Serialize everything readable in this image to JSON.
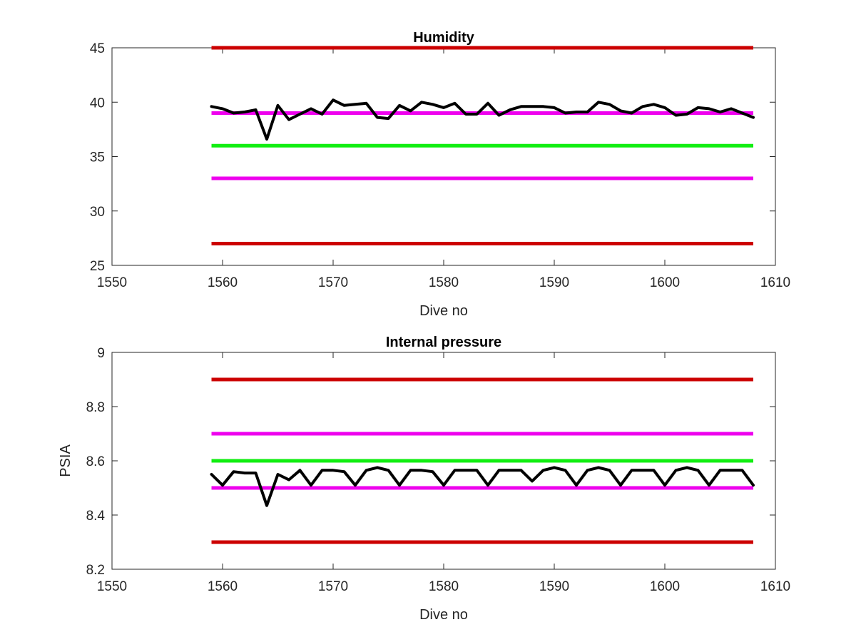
{
  "colors": {
    "red": "#cc0000",
    "magenta": "#ee00ee",
    "green": "#11ee11",
    "black": "#000000",
    "axis": "#262626"
  },
  "chart_data": [
    {
      "type": "line",
      "title": "Humidity",
      "xlabel": "Dive no",
      "ylabel": "",
      "xlim": [
        1550,
        1610
      ],
      "ylim": [
        25,
        45
      ],
      "xticks": [
        1550,
        1560,
        1570,
        1580,
        1590,
        1600,
        1610
      ],
      "yticks": [
        25,
        30,
        35,
        40,
        45
      ],
      "ytick_labels": [
        "25",
        "30",
        "35",
        "40",
        "45"
      ],
      "grid": false,
      "reference_lines": [
        {
          "y": 45,
          "x": [
            1559,
            1608
          ],
          "color": "red"
        },
        {
          "y": 39,
          "x": [
            1559,
            1608
          ],
          "color": "magenta"
        },
        {
          "y": 36,
          "x": [
            1559,
            1608
          ],
          "color": "green"
        },
        {
          "y": 33,
          "x": [
            1559,
            1608
          ],
          "color": "magenta"
        },
        {
          "y": 27,
          "x": [
            1559,
            1608
          ],
          "color": "red"
        }
      ],
      "series": [
        {
          "color": "black",
          "x": [
            1559,
            1560,
            1561,
            1562,
            1563,
            1564,
            1565,
            1566,
            1567,
            1568,
            1569,
            1570,
            1571,
            1572,
            1573,
            1574,
            1575,
            1576,
            1577,
            1578,
            1579,
            1580,
            1581,
            1582,
            1583,
            1584,
            1585,
            1586,
            1587,
            1588,
            1589,
            1590,
            1591,
            1592,
            1593,
            1594,
            1595,
            1596,
            1597,
            1598,
            1599,
            1600,
            1601,
            1602,
            1603,
            1604,
            1605,
            1606,
            1607,
            1608
          ],
          "y": [
            39.6,
            39.4,
            39.0,
            39.1,
            39.3,
            36.6,
            39.7,
            38.4,
            38.9,
            39.4,
            38.9,
            40.2,
            39.7,
            39.8,
            39.9,
            38.6,
            38.5,
            39.7,
            39.2,
            40.0,
            39.8,
            39.5,
            39.9,
            38.9,
            38.9,
            39.9,
            38.8,
            39.3,
            39.6,
            39.6,
            39.6,
            39.5,
            39.0,
            39.1,
            39.1,
            40.0,
            39.8,
            39.2,
            39.0,
            39.6,
            39.8,
            39.5,
            38.8,
            38.9,
            39.5,
            39.4,
            39.1,
            39.4,
            39.0,
            38.6
          ]
        }
      ]
    },
    {
      "type": "line",
      "title": "Internal pressure",
      "xlabel": "Dive no",
      "ylabel": "PSIA",
      "xlim": [
        1550,
        1610
      ],
      "ylim": [
        8.2,
        9.0
      ],
      "xticks": [
        1550,
        1560,
        1570,
        1580,
        1590,
        1600,
        1610
      ],
      "yticks": [
        8.2,
        8.4,
        8.6,
        8.8,
        9.0
      ],
      "ytick_labels": [
        "8.2",
        "8.4",
        "8.6",
        "8.8",
        "9"
      ],
      "grid": false,
      "reference_lines": [
        {
          "y": 8.9,
          "x": [
            1559,
            1608
          ],
          "color": "red"
        },
        {
          "y": 8.7,
          "x": [
            1559,
            1608
          ],
          "color": "magenta"
        },
        {
          "y": 8.6,
          "x": [
            1559,
            1608
          ],
          "color": "green"
        },
        {
          "y": 8.5,
          "x": [
            1559,
            1608
          ],
          "color": "magenta"
        },
        {
          "y": 8.3,
          "x": [
            1559,
            1608
          ],
          "color": "red"
        }
      ],
      "series": [
        {
          "color": "black",
          "x": [
            1559,
            1560,
            1561,
            1562,
            1563,
            1564,
            1565,
            1566,
            1567,
            1568,
            1569,
            1570,
            1571,
            1572,
            1573,
            1574,
            1575,
            1576,
            1577,
            1578,
            1579,
            1580,
            1581,
            1582,
            1583,
            1584,
            1585,
            1586,
            1587,
            1588,
            1589,
            1590,
            1591,
            1592,
            1593,
            1594,
            1595,
            1596,
            1597,
            1598,
            1599,
            1600,
            1601,
            1602,
            1603,
            1604,
            1605,
            1606,
            1607,
            1608
          ],
          "y": [
            8.55,
            8.51,
            8.56,
            8.555,
            8.555,
            8.435,
            8.55,
            8.53,
            8.565,
            8.51,
            8.565,
            8.565,
            8.56,
            8.51,
            8.565,
            8.575,
            8.565,
            8.51,
            8.565,
            8.565,
            8.56,
            8.51,
            8.565,
            8.565,
            8.565,
            8.51,
            8.565,
            8.565,
            8.565,
            8.525,
            8.565,
            8.575,
            8.565,
            8.51,
            8.565,
            8.575,
            8.565,
            8.51,
            8.565,
            8.565,
            8.565,
            8.51,
            8.565,
            8.575,
            8.565,
            8.51,
            8.565,
            8.565,
            8.565,
            8.51
          ]
        }
      ]
    }
  ]
}
